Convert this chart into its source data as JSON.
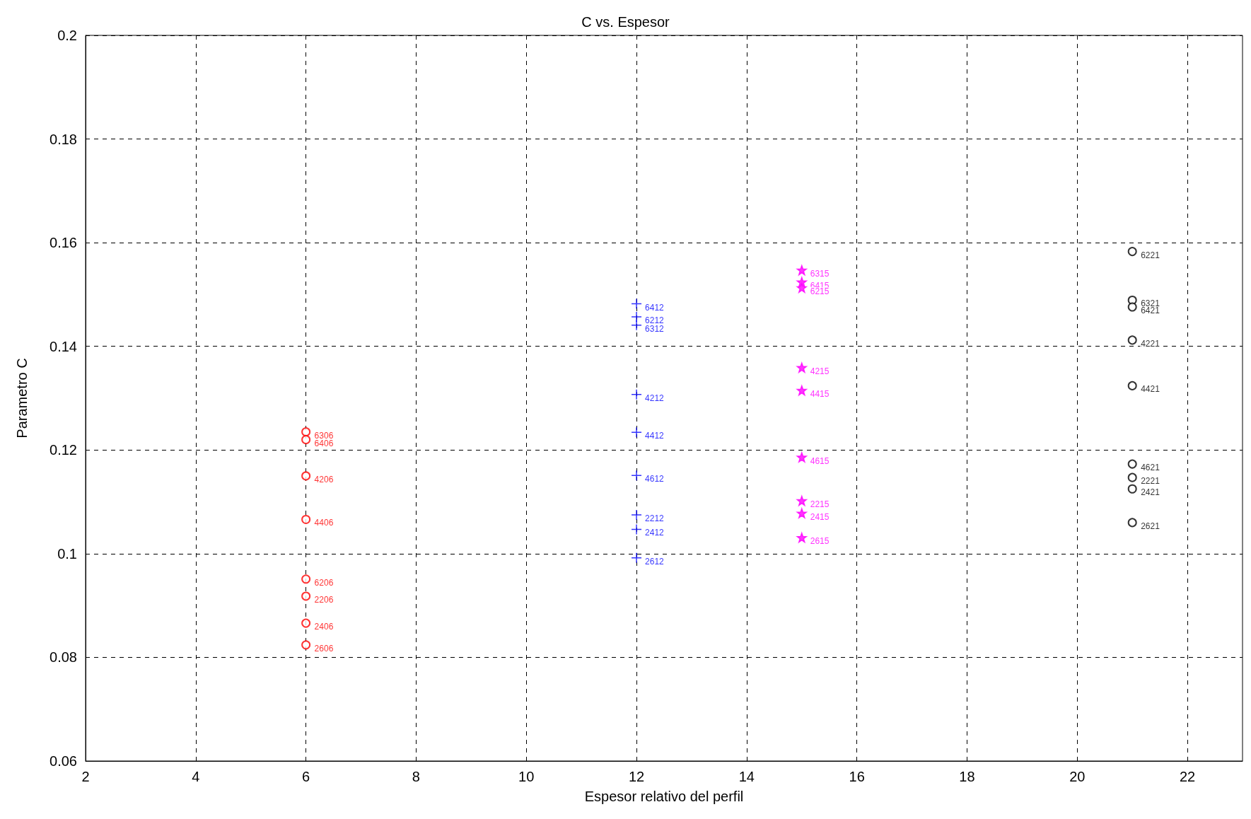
{
  "chart_data": {
    "type": "scatter",
    "title": "C vs. Espesor",
    "xlabel": "Espesor relativo del perfil",
    "ylabel": "Parametro C",
    "xlim": [
      2,
      23
    ],
    "xticks": [
      2,
      4,
      6,
      8,
      10,
      12,
      14,
      16,
      18,
      20,
      22
    ],
    "ylim": [
      0.06,
      0.2
    ],
    "yticks": [
      0.06,
      0.08,
      0.1,
      0.12,
      0.14,
      0.16,
      0.18,
      0.2
    ],
    "grid": true,
    "series": [
      {
        "color": "#ff0000",
        "marker": "circle",
        "x": [
          6,
          6,
          6,
          6,
          6,
          6,
          6,
          6
        ],
        "values": [
          0.1235,
          0.122,
          0.115,
          0.1066,
          0.0951,
          0.0918,
          0.0866,
          0.0824
        ]
      },
      {
        "color": "#0000ff",
        "marker": "cross",
        "x": [
          12,
          12,
          12,
          12,
          12,
          12,
          12,
          12,
          12
        ],
        "values": [
          0.1482,
          0.1457,
          0.1441,
          0.1307,
          0.1234,
          0.1151,
          0.1075,
          0.1047,
          0.0992
        ]
      },
      {
        "color": "#ff00ff",
        "marker": "star",
        "x": [
          15,
          15,
          15,
          15,
          15,
          15,
          15,
          15,
          15
        ],
        "values": [
          0.1547,
          0.1524,
          0.1513,
          0.1359,
          0.1315,
          0.1186,
          0.1102,
          0.1078,
          0.1031
        ]
      },
      {
        "color": "#000000",
        "marker": "circle",
        "x": [
          21,
          21,
          21,
          21,
          21,
          21,
          21,
          21,
          21
        ],
        "values": [
          0.1583,
          0.1489,
          0.1476,
          0.1412,
          0.1324,
          0.1173,
          0.1147,
          0.1125,
          0.106
        ]
      }
    ],
    "annotations": [
      {
        "text": "6306",
        "x": 6,
        "y": 0.1235
      },
      {
        "text": "6406",
        "x": 6,
        "y": 0.122
      },
      {
        "text": "4206",
        "x": 6,
        "y": 0.115
      },
      {
        "text": "4406",
        "x": 6,
        "y": 0.1066
      },
      {
        "text": "6206",
        "x": 6,
        "y": 0.0951
      },
      {
        "text": "2206",
        "x": 6,
        "y": 0.0918
      },
      {
        "text": "2406",
        "x": 6,
        "y": 0.0866
      },
      {
        "text": "2606",
        "x": 6,
        "y": 0.0824
      },
      {
        "text": "6412",
        "x": 12,
        "y": 0.1482
      },
      {
        "text": "6212",
        "x": 12,
        "y": 0.1457
      },
      {
        "text": "6312",
        "x": 12,
        "y": 0.1441
      },
      {
        "text": "4212",
        "x": 12,
        "y": 0.1307
      },
      {
        "text": "4412",
        "x": 12,
        "y": 0.1234
      },
      {
        "text": "4612",
        "x": 12,
        "y": 0.1151
      },
      {
        "text": "2212",
        "x": 12,
        "y": 0.1075
      },
      {
        "text": "2412",
        "x": 12,
        "y": 0.1047
      },
      {
        "text": "2612",
        "x": 12,
        "y": 0.0992
      },
      {
        "text": "6315",
        "x": 15,
        "y": 0.1547
      },
      {
        "text": "6415",
        "x": 15,
        "y": 0.1524
      },
      {
        "text": "6215",
        "x": 15,
        "y": 0.1513
      },
      {
        "text": "4215",
        "x": 15,
        "y": 0.1359
      },
      {
        "text": "4415",
        "x": 15,
        "y": 0.1315
      },
      {
        "text": "4615",
        "x": 15,
        "y": 0.1186
      },
      {
        "text": "2215",
        "x": 15,
        "y": 0.1102
      },
      {
        "text": "2415",
        "x": 15,
        "y": 0.1078
      },
      {
        "text": "2615",
        "x": 15,
        "y": 0.1031
      },
      {
        "text": "6221",
        "x": 21,
        "y": 0.1583
      },
      {
        "text": "6321",
        "x": 21,
        "y": 0.1489
      },
      {
        "text": "6421",
        "x": 21,
        "y": 0.1476
      },
      {
        "text": "4221",
        "x": 21,
        "y": 0.1412
      },
      {
        "text": "4421",
        "x": 21,
        "y": 0.1324
      },
      {
        "text": "4621",
        "x": 21,
        "y": 0.1173
      },
      {
        "text": "2221",
        "x": 21,
        "y": 0.1147
      },
      {
        "text": "2421",
        "x": 21,
        "y": 0.1125
      },
      {
        "text": "2621",
        "x": 21,
        "y": 0.106
      }
    ]
  }
}
